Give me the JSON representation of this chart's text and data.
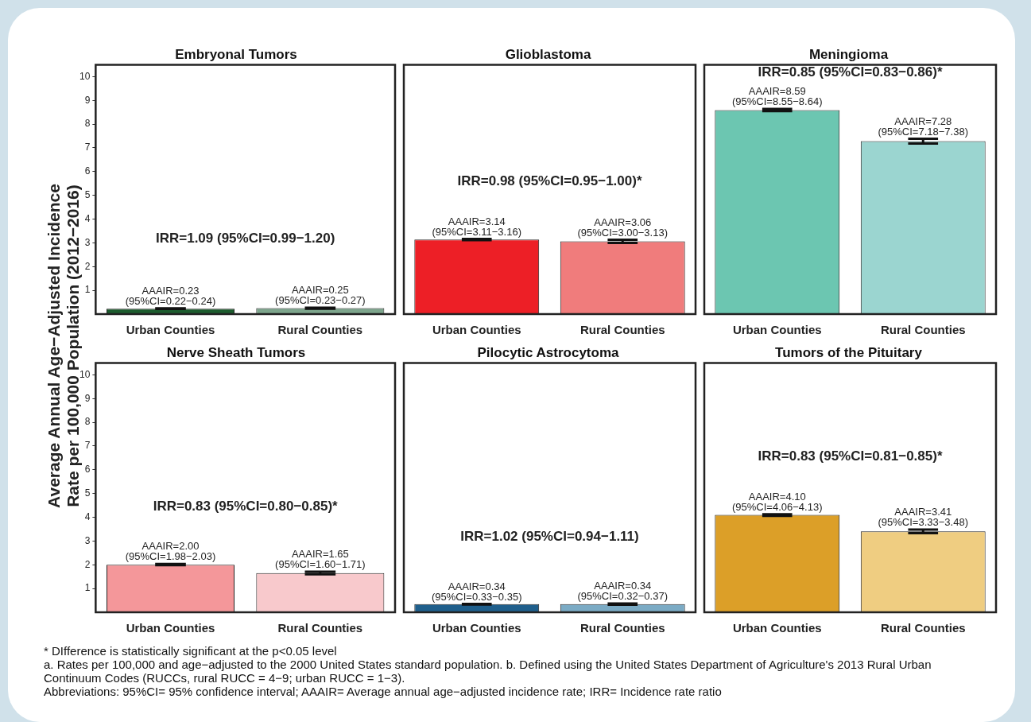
{
  "chart_data": [
    {
      "type": "bar",
      "title": "Embryonal Tumors",
      "ylabel": "Average Annual Age−Adjusted Incidence\nRate per 100,000 Population (2012−2016)",
      "categories": [
        "Urban Counties",
        "Rural Counties"
      ],
      "values": [
        0.23,
        0.25
      ],
      "colors": [
        "#1d5c2e",
        "#7da58c"
      ],
      "errors": [
        [
          0.22,
          0.24
        ],
        [
          0.23,
          0.27
        ]
      ],
      "value_labels": [
        "AAAIR=0.23\n(95%CI=0.22−0.24)",
        "AAAIR=0.25\n(95%CI=0.23−0.27)"
      ],
      "annotations": [
        "IRR=1.09 (95%CI=0.99−1.20)"
      ],
      "ylim": [
        0,
        10.5
      ],
      "yticks": [
        1,
        2,
        3,
        4,
        5,
        6,
        7,
        8,
        9,
        10
      ]
    },
    {
      "type": "bar",
      "title": "Glioblastoma",
      "categories": [
        "Urban Counties",
        "Rural Counties"
      ],
      "values": [
        3.14,
        3.06
      ],
      "colors": [
        "#ed1f26",
        "#f07c7c"
      ],
      "errors": [
        [
          3.11,
          3.16
        ],
        [
          3.0,
          3.13
        ]
      ],
      "value_labels": [
        "AAAIR=3.14\n(95%CI=3.11−3.16)",
        "AAAIR=3.06\n(95%CI=3.00−3.13)"
      ],
      "annotations": [
        "IRR=0.98 (95%CI=0.95−1.00)*"
      ],
      "ylim": [
        0,
        10.5
      ],
      "yticks": [
        1,
        2,
        3,
        4,
        5,
        6,
        7,
        8,
        9,
        10
      ],
      "tick_labels": "x"
    },
    {
      "type": "bar",
      "title": "Meningioma",
      "categories": [
        "Urban Counties",
        "Rural Counties"
      ],
      "values": [
        8.59,
        7.28
      ],
      "colors": [
        "#6cc6b1",
        "#9bd5d0"
      ],
      "errors": [
        [
          8.55,
          8.64
        ],
        [
          7.18,
          7.38
        ]
      ],
      "value_labels": [
        "AAAIR=8.59\n(95%CI=8.55−8.64)",
        "AAAIR=7.28\n(95%CI=7.18−7.38)"
      ],
      "annotations": [
        "IRR=0.85 (95%CI=0.83−0.86)*"
      ],
      "ylim": [
        0,
        10.5
      ],
      "yticks": [
        1,
        2,
        3,
        4,
        5,
        6,
        7,
        8,
        9,
        10
      ],
      "tick_labels": "x"
    },
    {
      "type": "bar",
      "title": "Nerve Sheath Tumors",
      "categories": [
        "Urban Counties",
        "Rural Counties"
      ],
      "values": [
        2.0,
        1.65
      ],
      "colors": [
        "#f4979a",
        "#f8c9cc"
      ],
      "errors": [
        [
          1.98,
          2.03
        ],
        [
          1.6,
          1.71
        ]
      ],
      "value_labels": [
        "AAAIR=2.00\n(95%CI=1.98−2.03)",
        "AAAIR=1.65\n(95%CI=1.60−1.71)"
      ],
      "annotations": [
        "IRR=0.83 (95%CI=0.80−0.85)*"
      ],
      "ylim": [
        0,
        10.5
      ],
      "yticks": [
        1,
        2,
        3,
        4,
        5,
        6,
        7,
        8,
        9,
        10
      ]
    },
    {
      "type": "bar",
      "title": "Pilocytic Astrocytoma",
      "categories": [
        "Urban Counties",
        "Rural Counties"
      ],
      "values": [
        0.34,
        0.34
      ],
      "colors": [
        "#1f5f8c",
        "#7babc5"
      ],
      "errors": [
        [
          0.33,
          0.35
        ],
        [
          0.32,
          0.37
        ]
      ],
      "value_labels": [
        "AAAIR=0.34\n(95%CI=0.33−0.35)",
        "AAAIR=0.34\n(95%CI=0.32−0.37)"
      ],
      "annotations": [
        "IRR=1.02 (95%CI=0.94−1.11)"
      ],
      "ylim": [
        0,
        10.5
      ],
      "yticks": [
        1,
        2,
        3,
        4,
        5,
        6,
        7,
        8,
        9,
        10
      ],
      "tick_labels": "x"
    },
    {
      "type": "bar",
      "title": "Tumors of the Pituitary",
      "categories": [
        "Urban Counties",
        "Rural Counties"
      ],
      "values": [
        4.1,
        3.41
      ],
      "colors": [
        "#dc9f28",
        "#efcd81"
      ],
      "errors": [
        [
          4.06,
          4.13
        ],
        [
          3.33,
          3.48
        ]
      ],
      "value_labels": [
        "AAAIR=4.10\n(95%CI=4.06−4.13)",
        "AAAIR=3.41\n(95%CI=3.33−3.48)"
      ],
      "annotations": [
        "IRR=0.83 (95%CI=0.81−0.85)*",
        "* DIfference is statistically significant at the p<0.05 level",
        "a. Rates per 100,000 and age−adjusted to the 2000 United States standard population. b. Defined using the United States Department of Agriculture's 2013 Rural Urban Continuum Codes (RUCCs, rural RUCC = 4−9; urban RUCC = 1−3).",
        "Abbreviations: 95%CI= 95% confidence interval; AAAIR= Average annual age−adjusted incidence rate; IRR= Incidence rate ratio"
      ],
      "ylim": [
        0,
        10.5
      ],
      "yticks": [
        1,
        2,
        3,
        4,
        5,
        6,
        7,
        8,
        9,
        10
      ],
      "tick_labels": "x"
    }
  ]
}
